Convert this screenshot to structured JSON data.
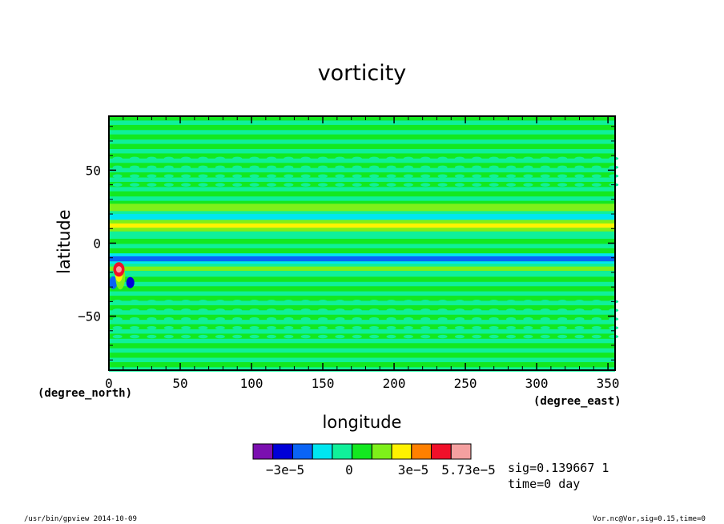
{
  "chart_data": {
    "type": "heatmap",
    "title": "vorticity",
    "xlabel": "longitude",
    "ylabel": "latitude",
    "x_unit": "(degree_east)",
    "y_unit": "(degree_north)",
    "xlim": [
      0,
      355
    ],
    "ylim": [
      -87,
      87
    ],
    "x_ticks": [
      "0",
      "50",
      "100",
      "150",
      "200",
      "250",
      "300",
      "350"
    ],
    "y_ticks": [
      "50",
      "0",
      "−50"
    ],
    "colorbar": {
      "colors": [
        "#7b0fb0",
        "#0000d8",
        "#0a64f5",
        "#00e6f0",
        "#10f09a",
        "#13e820",
        "#7ef01a",
        "#fff200",
        "#ff8000",
        "#f0102a",
        "#f5a0a0"
      ],
      "labels": [
        "−3e−5",
        "0",
        "3e−5",
        "5.73e−5"
      ]
    },
    "features": [
      {
        "description": "narrow positive band",
        "lat": 12,
        "lon_range": [
          0,
          355
        ]
      },
      {
        "description": "narrow negative band",
        "lat": -11,
        "lon_range": [
          0,
          355
        ]
      },
      {
        "description": "positive maximum",
        "lat": -18,
        "lon": 7,
        "value": 5.73e-05
      }
    ],
    "sig_text": "sig=0.139667 1",
    "time_text": "time=0  day"
  },
  "footer": {
    "left": "/usr/bin/gpview   2014-10-09",
    "right": "Vor.nc@Vor,sig=0.15,time=0"
  }
}
